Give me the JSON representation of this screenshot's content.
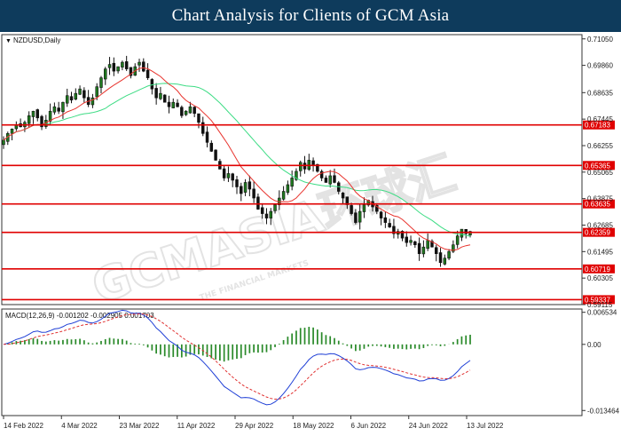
{
  "header": {
    "title": "Chart Analysis for Clients of GCM Asia"
  },
  "watermark": {
    "text": "GCMASIA环球汇",
    "sub": "THE FINANCIAL MARKETS"
  },
  "chart_data": {
    "type": "candlestick",
    "symbol_label": "NZDUSD,Daily",
    "price_ticks": [
      "0.71050",
      "0.69860",
      "0.68635",
      "0.67445",
      "0.66255",
      "0.65065",
      "0.63875",
      "0.62685",
      "0.61495",
      "0.60305",
      "0.59115"
    ],
    "price_ylim": [
      0.59115,
      0.7124
    ],
    "date_ticks": [
      "14 Feb 2022",
      "4 Mar 2022",
      "23 Mar 2022",
      "11 Apr 2022",
      "29 Apr 2022",
      "18 May 2022",
      "6 Jun 2022",
      "24 Jun 2022",
      "13 Jul 2022"
    ],
    "levels": [
      {
        "label": "0.67183",
        "value": 0.67183
      },
      {
        "label": "0.65365",
        "value": 0.65365
      },
      {
        "label": "0.63635",
        "value": 0.63635
      },
      {
        "label": "0.62359",
        "value": 0.62359
      },
      {
        "label": "0.60719",
        "value": 0.60719
      },
      {
        "label": "0.59337",
        "value": 0.59337
      }
    ],
    "level_color": "#e00000",
    "ma_fast_color": "#e8342e",
    "ma_slow_color": "#3ddc84",
    "candle_up_color": "#1f7a1f",
    "candle_down_color": "#111111",
    "closes": [
      0.665,
      0.668,
      0.67,
      0.672,
      0.671,
      0.673,
      0.676,
      0.678,
      0.675,
      0.671,
      0.674,
      0.678,
      0.68,
      0.678,
      0.682,
      0.685,
      0.683,
      0.686,
      0.688,
      0.684,
      0.681,
      0.684,
      0.689,
      0.693,
      0.697,
      0.699,
      0.696,
      0.698,
      0.7,
      0.697,
      0.694,
      0.698,
      0.7,
      0.696,
      0.693,
      0.688,
      0.684,
      0.686,
      0.682,
      0.68,
      0.682,
      0.68,
      0.676,
      0.678,
      0.68,
      0.677,
      0.673,
      0.668,
      0.664,
      0.66,
      0.656,
      0.652,
      0.648,
      0.65,
      0.647,
      0.644,
      0.641,
      0.646,
      0.643,
      0.639,
      0.634,
      0.632,
      0.63,
      0.633,
      0.636,
      0.639,
      0.642,
      0.645,
      0.648,
      0.651,
      0.655,
      0.652,
      0.656,
      0.654,
      0.651,
      0.648,
      0.646,
      0.649,
      0.646,
      0.642,
      0.639,
      0.636,
      0.632,
      0.628,
      0.633,
      0.636,
      0.638,
      0.635,
      0.633,
      0.63,
      0.628,
      0.626,
      0.623,
      0.624,
      0.621,
      0.619,
      0.62,
      0.618,
      0.614,
      0.617,
      0.62,
      0.617,
      0.614,
      0.61,
      0.612,
      0.615,
      0.618,
      0.622,
      0.625,
      0.623,
      0.624
    ],
    "macd": {
      "label": "MACD(12,26,9) -0.001202 -0.002905 0.001703",
      "ticks": [
        "0.006534",
        "0.00",
        "-0.013464"
      ],
      "ylim": [
        -0.0145,
        0.0072
      ],
      "macd_line_color": "#1f3fd6",
      "signal_line_color": "#e03030",
      "hist_color": "#2a8a2a"
    }
  }
}
